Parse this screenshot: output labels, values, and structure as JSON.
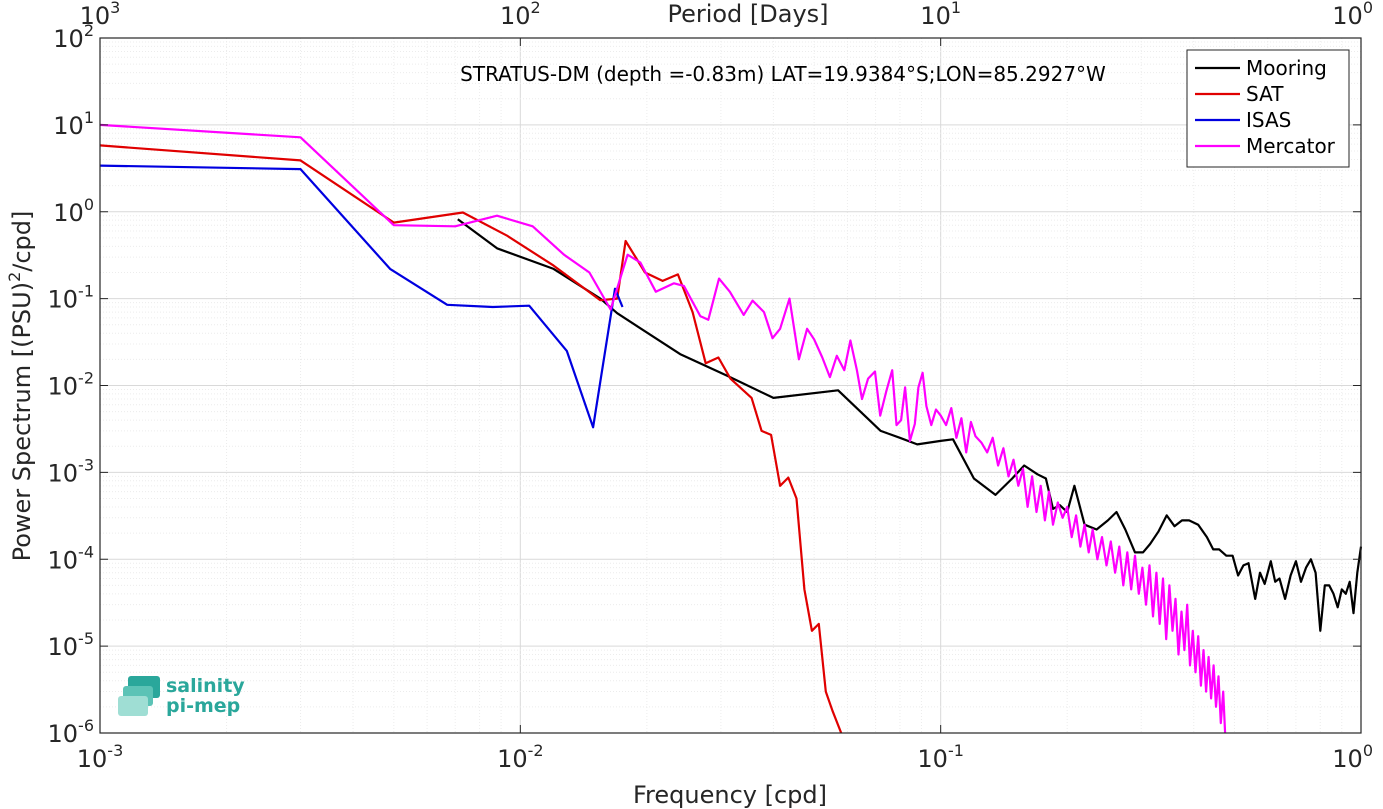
{
  "chart_data": {
    "type": "line",
    "title": "STRATUS-DM (depth =-0.83m) LAT=19.9384°S;LON=85.2927°W",
    "xlabel": "Frequency [cpd]",
    "ylabel_base": "Power Spectrum [(PSU)",
    "ylabel_sup": "2",
    "ylabel_tail": "/cpd]",
    "top_xlabel": "Period [Days]",
    "xscale": "log",
    "yscale": "log",
    "xlim": [
      0.001,
      1
    ],
    "ylim": [
      1e-06,
      100
    ],
    "grid": true,
    "minor_grid": true,
    "legend_position": "top-right",
    "x_ticks": [
      {
        "value": 0.001,
        "base": "10",
        "exp": "-3"
      },
      {
        "value": 0.01,
        "base": "10",
        "exp": "-2"
      },
      {
        "value": 0.1,
        "base": "10",
        "exp": "-1"
      },
      {
        "value": 1,
        "base": "10",
        "exp": "0"
      }
    ],
    "top_ticks": [
      {
        "value": 0.001,
        "base": "10",
        "exp": "3"
      },
      {
        "value": 0.01,
        "base": "10",
        "exp": "2"
      },
      {
        "value": 0.1,
        "base": "10",
        "exp": "1"
      },
      {
        "value": 1,
        "base": "10",
        "exp": "0"
      }
    ],
    "y_ticks": [
      {
        "value": 100,
        "base": "10",
        "exp": "2"
      },
      {
        "value": 10,
        "base": "10",
        "exp": "1"
      },
      {
        "value": 1,
        "base": "10",
        "exp": "0"
      },
      {
        "value": 0.1,
        "base": "10",
        "exp": "-1"
      },
      {
        "value": 0.01,
        "base": "10",
        "exp": "-2"
      },
      {
        "value": 0.001,
        "base": "10",
        "exp": "-3"
      },
      {
        "value": 0.0001,
        "base": "10",
        "exp": "-4"
      },
      {
        "value": 1e-05,
        "base": "10",
        "exp": "-5"
      },
      {
        "value": 1e-06,
        "base": "10",
        "exp": "-6"
      }
    ],
    "series": [
      {
        "name": "Mooring",
        "color": "#000000",
        "points": [
          [
            0.0071,
            0.82
          ],
          [
            0.0088,
            0.38
          ],
          [
            0.012,
            0.22
          ],
          [
            0.0155,
            0.1
          ],
          [
            0.017,
            0.068
          ],
          [
            0.024,
            0.023
          ],
          [
            0.031,
            0.013
          ],
          [
            0.04,
            0.0072
          ],
          [
            0.057,
            0.0088
          ],
          [
            0.072,
            0.003
          ],
          [
            0.08,
            0.0025
          ],
          [
            0.088,
            0.0021
          ],
          [
            0.1,
            0.0023
          ],
          [
            0.107,
            0.0024
          ],
          [
            0.12,
            0.00085
          ],
          [
            0.135,
            0.00055
          ],
          [
            0.148,
            0.00085
          ],
          [
            0.158,
            0.0012
          ],
          [
            0.17,
            0.00095
          ],
          [
            0.178,
            0.00085
          ],
          [
            0.185,
            0.00038
          ],
          [
            0.192,
            0.00042
          ],
          [
            0.2,
            0.00035
          ],
          [
            0.208,
            0.0007
          ],
          [
            0.22,
            0.00025
          ],
          [
            0.235,
            0.00022
          ],
          [
            0.25,
            0.00028
          ],
          [
            0.262,
            0.00035
          ],
          [
            0.275,
            0.00022
          ],
          [
            0.29,
            0.00012
          ],
          [
            0.303,
            0.00012
          ],
          [
            0.315,
            0.00015
          ],
          [
            0.33,
            0.00021
          ],
          [
            0.345,
            0.00032
          ],
          [
            0.36,
            0.00024
          ],
          [
            0.375,
            0.00028
          ],
          [
            0.39,
            0.00028
          ],
          [
            0.41,
            0.00025
          ],
          [
            0.43,
            0.00018
          ],
          [
            0.445,
            0.00013
          ],
          [
            0.46,
            0.00013
          ],
          [
            0.478,
            0.00011
          ],
          [
            0.495,
            0.00011
          ],
          [
            0.51,
            6.5e-05
          ],
          [
            0.525,
            8.5e-05
          ],
          [
            0.54,
            9e-05
          ],
          [
            0.56,
            3.5e-05
          ],
          [
            0.575,
            7e-05
          ],
          [
            0.59,
            5.2e-05
          ],
          [
            0.61,
            9.5e-05
          ],
          [
            0.625,
            5.5e-05
          ],
          [
            0.64,
            6e-05
          ],
          [
            0.66,
            3.5e-05
          ],
          [
            0.68,
            6.5e-05
          ],
          [
            0.7,
            9.5e-05
          ],
          [
            0.72,
            5.5e-05
          ],
          [
            0.74,
            8e-05
          ],
          [
            0.76,
            0.0001
          ],
          [
            0.78,
            7e-05
          ],
          [
            0.8,
            1.5e-05
          ],
          [
            0.82,
            5e-05
          ],
          [
            0.84,
            5e-05
          ],
          [
            0.86,
            4e-05
          ],
          [
            0.88,
            2.8e-05
          ],
          [
            0.9,
            4.5e-05
          ],
          [
            0.92,
            4e-05
          ],
          [
            0.94,
            5.5e-05
          ],
          [
            0.96,
            2.4e-05
          ],
          [
            0.98,
            7e-05
          ],
          [
            1,
            0.00014
          ]
        ]
      },
      {
        "name": "SAT",
        "color": "#e00000",
        "points": [
          [
            0.001,
            5.8
          ],
          [
            0.003,
            3.9
          ],
          [
            0.005,
            0.75
          ],
          [
            0.0073,
            0.98
          ],
          [
            0.0093,
            0.53
          ],
          [
            0.012,
            0.24
          ],
          [
            0.0155,
            0.096
          ],
          [
            0.017,
            0.1
          ],
          [
            0.0178,
            0.46
          ],
          [
            0.0198,
            0.2
          ],
          [
            0.0218,
            0.16
          ],
          [
            0.0237,
            0.19
          ],
          [
            0.0257,
            0.07
          ],
          [
            0.0276,
            0.018
          ],
          [
            0.0296,
            0.021
          ],
          [
            0.0316,
            0.012
          ],
          [
            0.0355,
            0.0072
          ],
          [
            0.0375,
            0.003
          ],
          [
            0.0395,
            0.0027
          ],
          [
            0.0415,
            0.0007
          ],
          [
            0.0434,
            0.00087
          ],
          [
            0.0454,
            0.0005
          ],
          [
            0.0474,
            4.5e-05
          ],
          [
            0.0494,
            1.5e-05
          ],
          [
            0.0513,
            1.8e-05
          ],
          [
            0.0533,
            3e-06
          ],
          [
            0.0553,
            1.8e-06
          ],
          [
            0.058,
            1e-06
          ]
        ]
      },
      {
        "name": "ISAS",
        "color": "#0000e0",
        "points": [
          [
            0.001,
            3.4
          ],
          [
            0.003,
            3.1
          ],
          [
            0.0049,
            0.22
          ],
          [
            0.0067,
            0.085
          ],
          [
            0.0086,
            0.08
          ],
          [
            0.0105,
            0.083
          ],
          [
            0.0129,
            0.025
          ],
          [
            0.0149,
            0.0033
          ],
          [
            0.0168,
            0.13
          ],
          [
            0.0175,
            0.08
          ]
        ]
      },
      {
        "name": "Mercator",
        "color": "#ff00ff",
        "points": [
          [
            0.001,
            10
          ],
          [
            0.003,
            7.2
          ],
          [
            0.005,
            0.7
          ],
          [
            0.007,
            0.68
          ],
          [
            0.0088,
            0.9
          ],
          [
            0.0107,
            0.68
          ],
          [
            0.0127,
            0.32
          ],
          [
            0.0146,
            0.2
          ],
          [
            0.0164,
            0.075
          ],
          [
            0.018,
            0.32
          ],
          [
            0.0193,
            0.26
          ],
          [
            0.021,
            0.12
          ],
          [
            0.0232,
            0.15
          ],
          [
            0.0245,
            0.14
          ],
          [
            0.0268,
            0.063
          ],
          [
            0.028,
            0.057
          ],
          [
            0.0297,
            0.17
          ],
          [
            0.0315,
            0.12
          ],
          [
            0.034,
            0.065
          ],
          [
            0.0357,
            0.095
          ],
          [
            0.038,
            0.07
          ],
          [
            0.0398,
            0.035
          ],
          [
            0.0415,
            0.045
          ],
          [
            0.0437,
            0.1
          ],
          [
            0.046,
            0.02
          ],
          [
            0.0481,
            0.045
          ],
          [
            0.05,
            0.034
          ],
          [
            0.0523,
            0.021
          ],
          [
            0.0545,
            0.0125
          ],
          [
            0.0566,
            0.022
          ],
          [
            0.059,
            0.015
          ],
          [
            0.061,
            0.033
          ],
          [
            0.0632,
            0.015
          ],
          [
            0.065,
            0.007
          ],
          [
            0.0672,
            0.012
          ],
          [
            0.0698,
            0.0145
          ],
          [
            0.0718,
            0.0045
          ],
          [
            0.0742,
            0.0085
          ],
          [
            0.0767,
            0.015
          ],
          [
            0.0785,
            0.0035
          ],
          [
            0.0805,
            0.004
          ],
          [
            0.0823,
            0.0095
          ],
          [
            0.0845,
            0.0023
          ],
          [
            0.0868,
            0.0036
          ],
          [
            0.0885,
            0.0095
          ],
          [
            0.0906,
            0.014
          ],
          [
            0.0925,
            0.0058
          ],
          [
            0.095,
            0.0035
          ],
          [
            0.0975,
            0.0053
          ],
          [
            0.1,
            0.0045
          ],
          [
            0.103,
            0.0035
          ],
          [
            0.106,
            0.0055
          ],
          [
            0.109,
            0.0025
          ],
          [
            0.112,
            0.0042
          ],
          [
            0.115,
            0.0017
          ],
          [
            0.118,
            0.0038
          ],
          [
            0.121,
            0.0026
          ],
          [
            0.125,
            0.0022
          ],
          [
            0.129,
            0.0017
          ],
          [
            0.133,
            0.0025
          ],
          [
            0.137,
            0.0012
          ],
          [
            0.141,
            0.0019
          ],
          [
            0.145,
            0.0009
          ],
          [
            0.149,
            0.0014
          ],
          [
            0.153,
            0.0007
          ],
          [
            0.157,
            0.0011
          ],
          [
            0.161,
            0.0004
          ],
          [
            0.165,
            0.0009
          ],
          [
            0.169,
            0.00035
          ],
          [
            0.173,
            0.0007
          ],
          [
            0.177,
            0.00028
          ],
          [
            0.181,
            0.0006
          ],
          [
            0.185,
            0.00025
          ],
          [
            0.19,
            0.00045
          ],
          [
            0.195,
            0.0003
          ],
          [
            0.2,
            0.0004
          ],
          [
            0.205,
            0.00018
          ],
          [
            0.21,
            0.00032
          ],
          [
            0.215,
            0.00014
          ],
          [
            0.22,
            0.00025
          ],
          [
            0.225,
            0.00012
          ],
          [
            0.23,
            0.00022
          ],
          [
            0.236,
            0.0001
          ],
          [
            0.242,
            0.00018
          ],
          [
            0.248,
            8.5e-05
          ],
          [
            0.254,
            0.00016
          ],
          [
            0.26,
            7e-05
          ],
          [
            0.266,
            0.00014
          ],
          [
            0.272,
            5e-05
          ],
          [
            0.278,
            0.00012
          ],
          [
            0.284,
            4.5e-05
          ],
          [
            0.29,
            0.00011
          ],
          [
            0.296,
            4e-05
          ],
          [
            0.302,
            8e-05
          ],
          [
            0.308,
            3e-05
          ],
          [
            0.314,
            8.5e-05
          ],
          [
            0.32,
            2.2e-05
          ],
          [
            0.326,
            7e-05
          ],
          [
            0.332,
            1.8e-05
          ],
          [
            0.338,
            6e-05
          ],
          [
            0.344,
            1.2e-05
          ],
          [
            0.35,
            5e-05
          ],
          [
            0.356,
            1.5e-05
          ],
          [
            0.362,
            3.5e-05
          ],
          [
            0.368,
            8e-06
          ],
          [
            0.374,
            2.5e-05
          ],
          [
            0.38,
            9e-06
          ],
          [
            0.386,
            3e-05
          ],
          [
            0.392,
            6e-06
          ],
          [
            0.398,
            1.5e-05
          ],
          [
            0.404,
            5e-06
          ],
          [
            0.41,
            1.3e-05
          ],
          [
            0.416,
            3.5e-06
          ],
          [
            0.422,
            9e-06
          ],
          [
            0.428,
            3e-06
          ],
          [
            0.434,
            7.5e-06
          ],
          [
            0.44,
            2.5e-06
          ],
          [
            0.446,
            6e-06
          ],
          [
            0.452,
            2e-06
          ],
          [
            0.458,
            4.5e-06
          ],
          [
            0.464,
            1.3e-06
          ],
          [
            0.47,
            3e-06
          ],
          [
            0.475,
            1e-06
          ]
        ]
      }
    ]
  },
  "logo": {
    "line1": "salinity",
    "line2": "pi-mep",
    "color": "#2aa79b"
  }
}
